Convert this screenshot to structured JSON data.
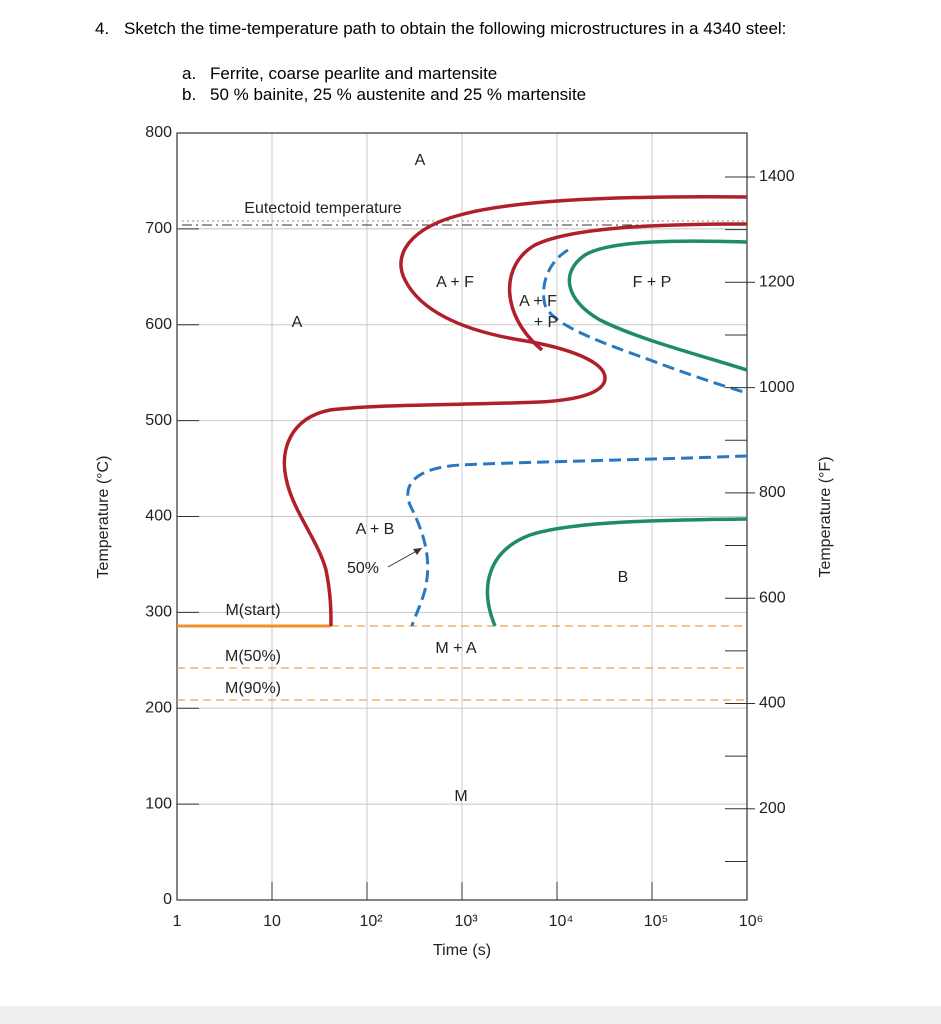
{
  "question": {
    "number": "4.",
    "text": "Sketch the time-temperature path to obtain the following microstructures in a 4340 steel:",
    "items": [
      {
        "label": "a.",
        "text": "Ferrite, coarse pearlite and martensite"
      },
      {
        "label": "b.",
        "text": "50 % bainite, 25 % austenite and 25 % martensite"
      }
    ]
  },
  "diagram": {
    "y_axis_label": "Temperature (°C)",
    "y_ticks": [
      "800",
      "700",
      "600",
      "500",
      "400",
      "300",
      "200",
      "100",
      "0"
    ],
    "y2_axis_label": "Temperature (°F)",
    "y2_ticks": [
      "1400",
      "1200",
      "1000",
      "800",
      "600",
      "400",
      "200"
    ],
    "x_axis_label": "Time (s)",
    "x_ticks": [
      "1",
      "10",
      "10²",
      "10³",
      "10⁴",
      "10⁵",
      "10⁶"
    ],
    "labels": [
      "A",
      "Eutectoid temperature",
      "A + F",
      "A + F",
      "+ P",
      "F + P",
      "A",
      "A + B",
      "50%",
      "B",
      "M(start)",
      "M + A",
      "M(50%)",
      "M(90%)",
      "M"
    ]
  }
}
